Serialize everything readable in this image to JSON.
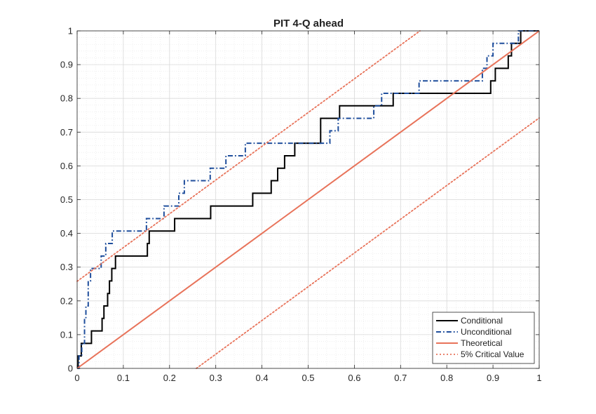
{
  "chart_data": {
    "type": "line",
    "title": "PIT 4-Q ahead",
    "xlabel": "",
    "ylabel": "",
    "xlim": [
      0,
      1
    ],
    "ylim": [
      0,
      1
    ],
    "x_ticks": [
      "0",
      "0.1",
      "0.2",
      "0.3",
      "0.4",
      "0.5",
      "0.6",
      "0.7",
      "0.8",
      "0.9",
      "1"
    ],
    "y_ticks": [
      "0",
      "0.1",
      "0.2",
      "0.3",
      "0.4",
      "0.5",
      "0.6",
      "0.7",
      "0.8",
      "0.9",
      "1"
    ],
    "grid": true,
    "minor_grid": true,
    "legend_position": "bottom-right",
    "series": [
      {
        "name": "Conditional",
        "style": "solid",
        "color": "#000000",
        "step": true,
        "x": [
          0,
          0.002,
          0.009,
          0.011,
          0.031,
          0.054,
          0.058,
          0.066,
          0.07,
          0.075,
          0.083,
          0.088,
          0.152,
          0.156,
          0.211,
          0.289,
          0.38,
          0.42,
          0.434,
          0.449,
          0.471,
          0.527,
          0.568,
          0.684,
          0.895,
          0.905,
          0.933,
          0.94,
          0.954,
          0.96
        ],
        "y": [
          0,
          0.037,
          0.074,
          0.074,
          0.111,
          0.148,
          0.185,
          0.222,
          0.259,
          0.296,
          0.333,
          0.333,
          0.37,
          0.407,
          0.444,
          0.481,
          0.519,
          0.556,
          0.593,
          0.63,
          0.667,
          0.741,
          0.778,
          0.815,
          0.852,
          0.889,
          0.926,
          0.963,
          0.963,
          1.0
        ]
      },
      {
        "name": "Unconditional",
        "style": "dash-dot",
        "color": "#1f4e9c",
        "step": true,
        "x": [
          0,
          0.004,
          0.01,
          0.016,
          0.019,
          0.024,
          0.029,
          0.052,
          0.062,
          0.076,
          0.088,
          0.15,
          0.158,
          0.188,
          0.22,
          0.232,
          0.288,
          0.322,
          0.364,
          0.547,
          0.565,
          0.642,
          0.659,
          0.74,
          0.877,
          0.887,
          0.9,
          0.939,
          0.955,
          0.96
        ],
        "y": [
          0,
          0.037,
          0.074,
          0.148,
          0.185,
          0.259,
          0.296,
          0.333,
          0.37,
          0.407,
          0.407,
          0.444,
          0.444,
          0.481,
          0.519,
          0.556,
          0.593,
          0.63,
          0.667,
          0.704,
          0.741,
          0.778,
          0.815,
          0.852,
          0.889,
          0.926,
          0.963,
          0.963,
          1.0,
          1.0
        ]
      },
      {
        "name": "Theoretical",
        "style": "solid",
        "color": "#e8735a",
        "x": [
          0,
          1
        ],
        "y": [
          0,
          1
        ]
      },
      {
        "name": "5% Critical Value",
        "style": "dotted",
        "color": "#e8735a",
        "x": [
          0,
          0.742
        ],
        "y": [
          0.258,
          1
        ]
      },
      {
        "name": "5% Critical Value (lower)",
        "style": "dotted",
        "color": "#e8735a",
        "legend": false,
        "x": [
          0.258,
          1
        ],
        "y": [
          0,
          0.742
        ]
      }
    ]
  }
}
